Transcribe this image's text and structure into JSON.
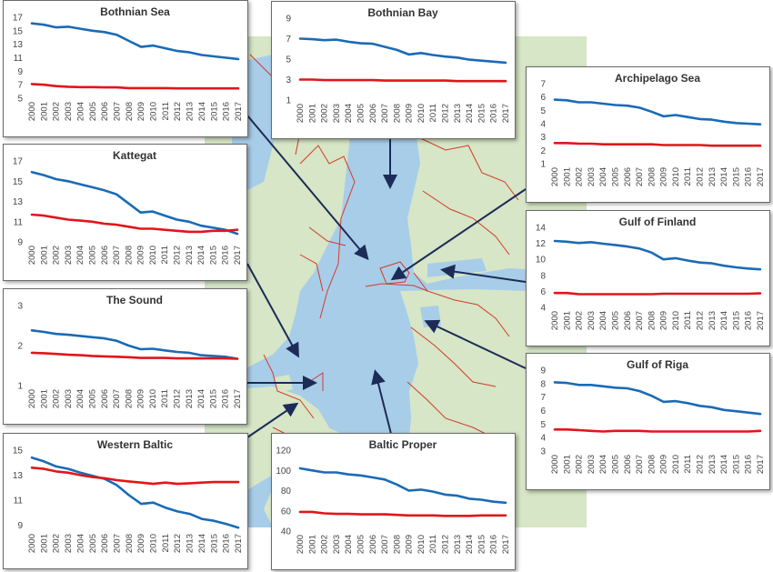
{
  "colors": {
    "sea": "#a8cde9",
    "land": "#d6e6c6",
    "border": "#d43a2a",
    "series_blue": "#1a6bb5",
    "series_red": "#e0161b",
    "arrow": "#1d2b57"
  },
  "chart_data": [
    {
      "id": "bothnian-sea",
      "type": "line",
      "title": "Bothnian Sea",
      "x": [
        "2000",
        "2001",
        "2002",
        "2003",
        "2004",
        "2005",
        "2006",
        "2007",
        "2008",
        "2009",
        "2010",
        "2011",
        "2012",
        "2013",
        "2014",
        "2015",
        "2016",
        "2017"
      ],
      "yticks": [
        "5",
        "7",
        "9",
        "11",
        "13",
        "15",
        "17"
      ],
      "ylim": [
        5,
        17
      ],
      "grid": false,
      "series": [
        {
          "color": "#1a6bb5",
          "values": [
            16.1,
            15.9,
            15.5,
            15.6,
            15.3,
            15.0,
            14.8,
            14.4,
            13.5,
            12.6,
            12.8,
            12.4,
            12.0,
            11.8,
            11.4,
            11.2,
            11.0,
            10.8
          ]
        },
        {
          "color": "#e0161b",
          "values": [
            7.1,
            7.0,
            6.8,
            6.7,
            6.65,
            6.65,
            6.6,
            6.6,
            6.5,
            6.5,
            6.5,
            6.5,
            6.45,
            6.45,
            6.45,
            6.45,
            6.45,
            6.45
          ]
        }
      ]
    },
    {
      "id": "bothnian-bay",
      "type": "line",
      "title": "Bothnian Bay",
      "x": [
        "2000",
        "2001",
        "2002",
        "2003",
        "2004",
        "2005",
        "2006",
        "2007",
        "2008",
        "2009",
        "2010",
        "2011",
        "2012",
        "2013",
        "2014",
        "2015",
        "2016",
        "2017"
      ],
      "yticks": [
        "1",
        "3",
        "5",
        "7",
        "9"
      ],
      "ylim": [
        1,
        9
      ],
      "grid": false,
      "series": [
        {
          "color": "#1a6bb5",
          "values": [
            7.0,
            6.95,
            6.85,
            6.9,
            6.7,
            6.55,
            6.5,
            6.2,
            5.9,
            5.45,
            5.6,
            5.4,
            5.25,
            5.15,
            4.95,
            4.85,
            4.75,
            4.65
          ]
        },
        {
          "color": "#e0161b",
          "values": [
            3.0,
            3.0,
            2.95,
            2.95,
            2.95,
            2.95,
            2.95,
            2.9,
            2.9,
            2.9,
            2.9,
            2.9,
            2.9,
            2.85,
            2.85,
            2.85,
            2.85,
            2.85
          ]
        }
      ]
    },
    {
      "id": "archipelago-sea",
      "type": "line",
      "title": "Archipelago Sea",
      "x": [
        "2000",
        "2001",
        "2002",
        "2003",
        "2004",
        "2005",
        "2006",
        "2007",
        "2008",
        "2009",
        "2010",
        "2011",
        "2012",
        "2013",
        "2014",
        "2015",
        "2016",
        "2017"
      ],
      "yticks": [
        "1",
        "2",
        "3",
        "4",
        "5",
        "6",
        "7"
      ],
      "ylim": [
        1,
        7
      ],
      "grid": false,
      "series": [
        {
          "color": "#1a6bb5",
          "values": [
            5.8,
            5.75,
            5.6,
            5.6,
            5.5,
            5.4,
            5.35,
            5.2,
            4.9,
            4.55,
            4.65,
            4.5,
            4.35,
            4.3,
            4.15,
            4.05,
            4.0,
            3.95
          ]
        },
        {
          "color": "#e0161b",
          "values": [
            2.55,
            2.55,
            2.5,
            2.5,
            2.45,
            2.45,
            2.45,
            2.45,
            2.45,
            2.4,
            2.4,
            2.4,
            2.4,
            2.35,
            2.35,
            2.35,
            2.35,
            2.35
          ]
        }
      ]
    },
    {
      "id": "kattegat",
      "type": "line",
      "title": "Kattegat",
      "x": [
        "2000",
        "2001",
        "2002",
        "2003",
        "2004",
        "2005",
        "2006",
        "2007",
        "2008",
        "2009",
        "2010",
        "2011",
        "2012",
        "2013",
        "2014",
        "2015",
        "2016",
        "2017"
      ],
      "yticks": [
        "9",
        "11",
        "13",
        "15",
        "17"
      ],
      "ylim": [
        9,
        17
      ],
      "grid": false,
      "series": [
        {
          "color": "#1a6bb5",
          "values": [
            15.9,
            15.6,
            15.2,
            15.0,
            14.7,
            14.4,
            14.1,
            13.7,
            12.8,
            11.9,
            12.0,
            11.6,
            11.2,
            11.0,
            10.6,
            10.4,
            10.2,
            9.8
          ]
        },
        {
          "color": "#e0161b",
          "values": [
            11.7,
            11.6,
            11.4,
            11.2,
            11.1,
            11.0,
            10.8,
            10.7,
            10.5,
            10.3,
            10.3,
            10.2,
            10.1,
            10.0,
            10.0,
            10.1,
            10.1,
            10.2
          ]
        }
      ]
    },
    {
      "id": "gulf-of-finland",
      "type": "line",
      "title": "Gulf of Finland",
      "x": [
        "2000",
        "2001",
        "2002",
        "2003",
        "2004",
        "2005",
        "2006",
        "2007",
        "2008",
        "2009",
        "2010",
        "2011",
        "2012",
        "2013",
        "2014",
        "2015",
        "2016",
        "2017"
      ],
      "yticks": [
        "4",
        "6",
        "8",
        "10",
        "12",
        "14"
      ],
      "ylim": [
        4,
        14
      ],
      "grid": false,
      "series": [
        {
          "color": "#1a6bb5",
          "values": [
            12.3,
            12.2,
            12.05,
            12.15,
            11.95,
            11.8,
            11.6,
            11.35,
            10.85,
            10.0,
            10.15,
            9.85,
            9.6,
            9.5,
            9.2,
            9.0,
            8.85,
            8.75
          ]
        },
        {
          "color": "#e0161b",
          "values": [
            5.8,
            5.8,
            5.65,
            5.65,
            5.65,
            5.65,
            5.65,
            5.65,
            5.65,
            5.7,
            5.7,
            5.7,
            5.7,
            5.7,
            5.7,
            5.7,
            5.7,
            5.75
          ]
        }
      ]
    },
    {
      "id": "the-sound",
      "type": "line",
      "title": "The Sound",
      "x": [
        "2000",
        "2001",
        "2002",
        "2003",
        "2004",
        "2005",
        "2006",
        "2007",
        "2008",
        "2009",
        "2010",
        "2011",
        "2012",
        "2013",
        "2014",
        "2015",
        "2016",
        "2017"
      ],
      "yticks": [
        "1",
        "2",
        "3"
      ],
      "ylim": [
        1,
        3
      ],
      "grid": false,
      "series": [
        {
          "color": "#1a6bb5",
          "values": [
            2.38,
            2.34,
            2.29,
            2.27,
            2.24,
            2.21,
            2.18,
            2.12,
            2.0,
            1.91,
            1.92,
            1.88,
            1.84,
            1.82,
            1.76,
            1.74,
            1.72,
            1.67
          ]
        },
        {
          "color": "#e0161b",
          "values": [
            1.82,
            1.81,
            1.79,
            1.77,
            1.76,
            1.74,
            1.73,
            1.72,
            1.71,
            1.69,
            1.69,
            1.69,
            1.68,
            1.68,
            1.68,
            1.68,
            1.68,
            1.67
          ]
        }
      ]
    },
    {
      "id": "gulf-of-riga",
      "type": "line",
      "title": "Gulf of Riga",
      "x": [
        "2000",
        "2001",
        "2002",
        "2003",
        "2004",
        "2005",
        "2006",
        "2007",
        "2008",
        "2009",
        "2010",
        "2011",
        "2012",
        "2013",
        "2014",
        "2015",
        "2016",
        "2017"
      ],
      "yticks": [
        "3",
        "4",
        "5",
        "6",
        "7",
        "8",
        "9"
      ],
      "ylim": [
        3,
        9
      ],
      "grid": false,
      "series": [
        {
          "color": "#1a6bb5",
          "values": [
            8.1,
            8.05,
            7.9,
            7.9,
            7.8,
            7.7,
            7.65,
            7.45,
            7.1,
            6.65,
            6.7,
            6.55,
            6.35,
            6.25,
            6.05,
            5.95,
            5.85,
            5.75
          ]
        },
        {
          "color": "#e0161b",
          "values": [
            4.6,
            4.6,
            4.55,
            4.5,
            4.45,
            4.5,
            4.5,
            4.5,
            4.45,
            4.45,
            4.45,
            4.45,
            4.45,
            4.45,
            4.45,
            4.45,
            4.45,
            4.5
          ]
        }
      ]
    },
    {
      "id": "western-baltic",
      "type": "line",
      "title": "Western Baltic",
      "x": [
        "2000",
        "2001",
        "2002",
        "2003",
        "2004",
        "2005",
        "2006",
        "2007",
        "2008",
        "2009",
        "2010",
        "2011",
        "2012",
        "2013",
        "2014",
        "2015",
        "2016",
        "2017"
      ],
      "yticks": [
        "9",
        "11",
        "13",
        "15"
      ],
      "ylim": [
        8.6,
        15
      ],
      "grid": false,
      "series": [
        {
          "color": "#1a6bb5",
          "values": [
            14.4,
            14.1,
            13.7,
            13.5,
            13.2,
            12.95,
            12.7,
            12.2,
            11.4,
            10.7,
            10.8,
            10.4,
            10.1,
            9.9,
            9.5,
            9.35,
            9.1,
            8.8
          ]
        },
        {
          "color": "#e0161b",
          "values": [
            13.6,
            13.5,
            13.3,
            13.2,
            13.0,
            12.85,
            12.75,
            12.6,
            12.5,
            12.4,
            12.3,
            12.4,
            12.3,
            12.35,
            12.4,
            12.45,
            12.45,
            12.45
          ]
        }
      ]
    },
    {
      "id": "baltic-proper",
      "type": "line",
      "title": "Baltic Proper",
      "x": [
        "2000",
        "2001",
        "2002",
        "2003",
        "2004",
        "2005",
        "2006",
        "2007",
        "2008",
        "2009",
        "2010",
        "2011",
        "2012",
        "2013",
        "2014",
        "2015",
        "2016",
        "2017"
      ],
      "yticks": [
        "40",
        "60",
        "80",
        "100",
        "120"
      ],
      "ylim": [
        40,
        120
      ],
      "grid": false,
      "series": [
        {
          "color": "#1a6bb5",
          "values": [
            102,
            100,
            98,
            98,
            96,
            95,
            93,
            91,
            86,
            80,
            81,
            79,
            76,
            75,
            72,
            71,
            69,
            68
          ]
        },
        {
          "color": "#e0161b",
          "values": [
            59,
            59,
            57.5,
            57,
            57,
            56.5,
            56.5,
            56.5,
            56,
            55.5,
            55.5,
            55.5,
            55,
            55,
            55,
            55.5,
            55.5,
            55.5
          ]
        }
      ]
    }
  ]
}
